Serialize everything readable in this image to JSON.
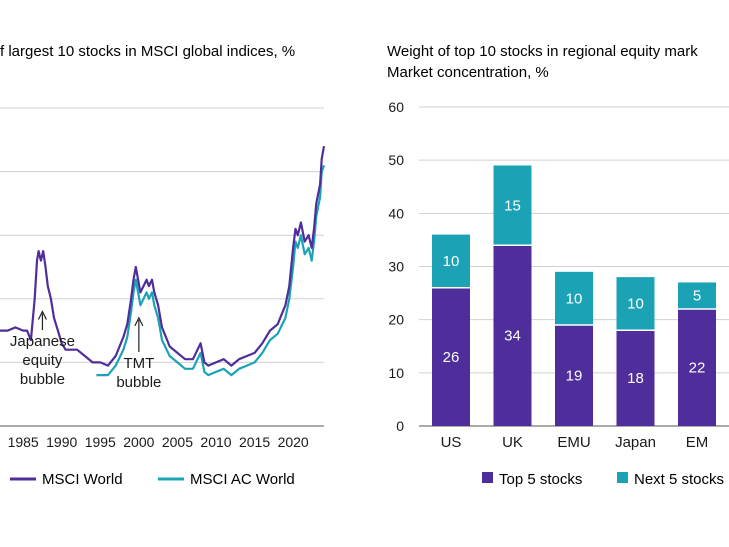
{
  "colors": {
    "purple": "#4f2d9b",
    "teal": "#1ba3b5",
    "grid": "#d0d0d0",
    "text": "#1a1a1a"
  },
  "chart_data": [
    {
      "type": "line",
      "title": "f largest 10 stocks in MSCI global indices, %",
      "xlim": [
        1982,
        2024
      ],
      "ylim": [
        10,
        60
      ],
      "x_ticks": [
        1985,
        1990,
        1995,
        2000,
        2005,
        2010,
        2015,
        2020
      ],
      "x_tick_labels": [
        "1985",
        "1990",
        "1995",
        "2000",
        "2005",
        "2010",
        "2015",
        "2020"
      ],
      "y_gridlines": [
        10,
        20,
        30,
        40,
        50,
        60
      ],
      "series": [
        {
          "name": "MSCI World",
          "color": "#4f2d9b",
          "x": [
            1982,
            1983,
            1984,
            1985,
            1985.5,
            1986,
            1986.5,
            1986.8,
            1987,
            1987.3,
            1987.6,
            1987.9,
            1988.2,
            1988.6,
            1989,
            1989.5,
            1990,
            1990.5,
            1991,
            1992,
            1993,
            1994,
            1995,
            1996,
            1997,
            1998,
            1998.5,
            1999,
            1999.3,
            1999.6,
            1999.9,
            2000.2,
            2000.6,
            2001,
            2001.3,
            2001.7,
            2002,
            2002.5,
            2003,
            2004,
            2005,
            2006,
            2007,
            2008,
            2008.5,
            2009,
            2010,
            2011,
            2012,
            2013,
            2014,
            2015,
            2016,
            2017,
            2018,
            2019,
            2019.5,
            2020,
            2020.3,
            2020.6,
            2021,
            2021.5,
            2022,
            2022.4,
            2022.7,
            2023,
            2023.5,
            2023.7,
            2024
          ],
          "y": [
            25,
            25,
            25.5,
            25,
            25,
            23.5,
            30,
            36,
            37.5,
            36,
            37.5,
            35,
            32,
            30,
            27,
            25,
            23,
            22,
            22,
            22,
            21,
            20,
            20,
            19.5,
            21,
            24,
            26,
            30,
            33,
            35,
            33,
            31,
            32,
            33,
            32,
            33,
            31,
            29,
            25.5,
            22.5,
            21.5,
            20.5,
            20.5,
            23,
            20,
            19.5,
            20,
            20.5,
            19.5,
            20.5,
            21,
            21.5,
            23,
            25,
            26,
            29,
            32,
            38,
            41,
            40,
            42,
            39,
            40,
            38,
            41,
            45,
            48,
            52,
            54
          ]
        },
        {
          "name": "MSCI AC World",
          "color": "#1ba3b5",
          "x": [
            1994.5,
            1995,
            1996,
            1997,
            1998,
            1998.5,
            1999,
            1999.3,
            1999.6,
            1999.9,
            2000.2,
            2000.6,
            2001,
            2001.3,
            2001.7,
            2002,
            2002.5,
            2003,
            2004,
            2005,
            2006,
            2007,
            2008,
            2008.5,
            2009,
            2010,
            2011,
            2012,
            2013,
            2014,
            2015,
            2016,
            2017,
            2018,
            2019,
            2019.5,
            2020,
            2020.3,
            2020.6,
            2021,
            2021.5,
            2022,
            2022.4,
            2022.7,
            2023,
            2023.5,
            2023.7,
            2024
          ],
          "y": [
            18,
            18,
            18,
            19.5,
            22,
            24,
            28,
            31,
            33,
            31,
            29,
            30,
            31,
            30,
            31,
            29,
            27,
            23.5,
            21,
            20,
            19,
            19,
            21.5,
            18.5,
            18,
            18.5,
            19,
            18,
            19,
            19.5,
            20,
            21.5,
            23.5,
            24.5,
            27,
            30,
            35,
            39,
            38,
            40,
            37,
            38,
            36,
            39,
            43,
            46,
            50,
            51
          ]
        }
      ],
      "annotations": [
        {
          "lines": [
            "Japanese",
            "equity",
            "bubble"
          ],
          "x": 1987.5,
          "y": 28
        },
        {
          "lines": [
            "TMT",
            "bubble"
          ],
          "x": 2000,
          "y": 27
        }
      ],
      "legend": [
        "MSCI World",
        "MSCI AC World"
      ],
      "legend_position": "bottom"
    },
    {
      "type": "bar",
      "stacked": true,
      "title": [
        "Weight of top 10 stocks in regional equity mark",
        "Market concentration, %"
      ],
      "categories": [
        "US",
        "UK",
        "EMU",
        "Japan",
        "EM"
      ],
      "ylim": [
        0,
        60
      ],
      "y_ticks": [
        0,
        10,
        20,
        30,
        40,
        50,
        60
      ],
      "y_tick_labels": [
        "0",
        "10",
        "20",
        "30",
        "40",
        "50",
        "60"
      ],
      "series": [
        {
          "name": "Top 5 stocks",
          "color": "#4f2d9b",
          "values": [
            26,
            34,
            19,
            18,
            22
          ],
          "labels": [
            "26",
            "34",
            "19",
            "18",
            "22"
          ]
        },
        {
          "name": "Next 5 stocks",
          "color": "#1ba3b5",
          "values": [
            10,
            15,
            10,
            10,
            5
          ],
          "labels": [
            "10",
            "15",
            "10",
            "10",
            "5"
          ]
        }
      ],
      "legend": [
        "Top 5 stocks",
        "Next 5 stocks"
      ],
      "legend_position": "bottom"
    }
  ]
}
